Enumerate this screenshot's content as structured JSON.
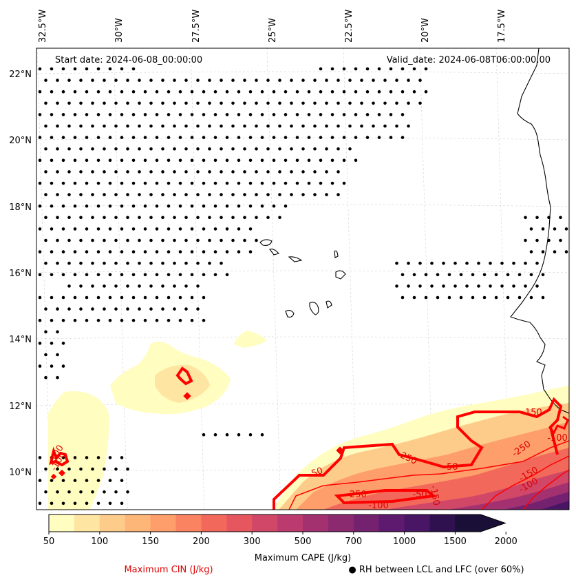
{
  "map": {
    "start_date_label": "Start date: 2024-06-08_00:00:00",
    "valid_date_label": "Valid_date: 2024-06-08T06:00:00.00",
    "lon_labels": [
      "32.5°W",
      "30°W",
      "27.5°W",
      "25°W",
      "22.5°W",
      "20°W",
      "17.5°W"
    ],
    "lat_labels": [
      "22°N",
      "20°N",
      "18°N",
      "16°N",
      "14°N",
      "12°N",
      "10°N"
    ],
    "cin_contour_labels": [
      "-250",
      "-100",
      "-50",
      "-250",
      "-150",
      "-50",
      "-150",
      "-100",
      "-250",
      "-50",
      "-150",
      "-100",
      "-100",
      "-100"
    ],
    "stipple_color": "#000000",
    "cin_color": "#ff0000"
  },
  "colorbar": {
    "title": "Maximum CAPE (J/kg)",
    "ticks": [
      "50",
      "100",
      "150",
      "200",
      "300",
      "500",
      "700",
      "1000",
      "1500",
      "2000"
    ],
    "colors": [
      "#fffdbf",
      "#fee5a1",
      "#fecc8a",
      "#feb578",
      "#fd9e6b",
      "#fa8362",
      "#f2695c",
      "#e5565f",
      "#d14767",
      "#bb3b6f",
      "#a3306f",
      "#8c2a6f",
      "#742270",
      "#5e1a6e",
      "#481664",
      "#2f1150",
      "#1a0f36"
    ]
  },
  "legend": {
    "cin_label": "Maximum CIN (J/kg)",
    "rh_label": "● RH between LCL and LFC (over 60%)"
  }
}
